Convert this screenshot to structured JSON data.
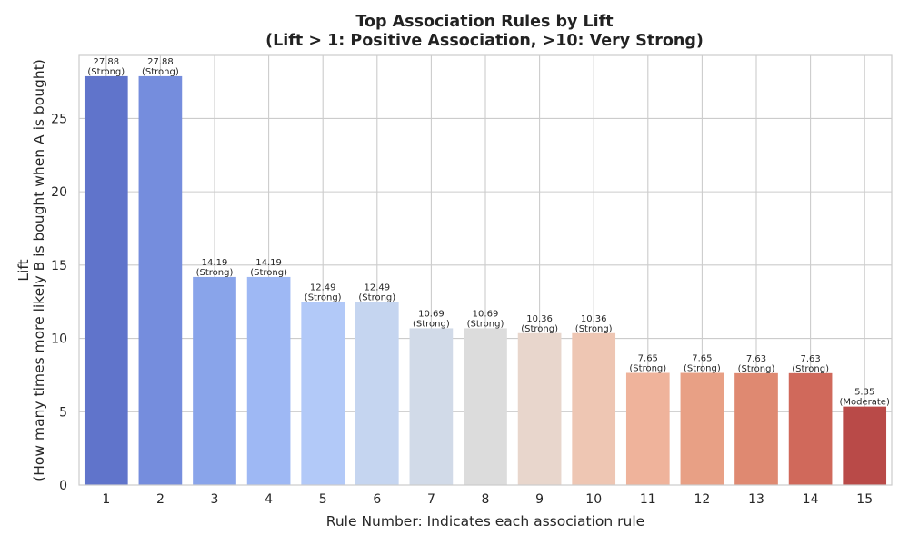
{
  "chart_data": {
    "type": "bar",
    "title": "Top Association Rules by Lift",
    "subtitle": "(Lift > 1: Positive Association, >10: Very Strong)",
    "xlabel": "Rule Number: Indicates each association rule",
    "ylabel": "Lift",
    "ylabel_line2": "(How many times more likely B is bought when A is bought)",
    "categories": [
      "1",
      "2",
      "3",
      "4",
      "5",
      "6",
      "7",
      "8",
      "9",
      "10",
      "11",
      "12",
      "13",
      "14",
      "15"
    ],
    "values": [
      27.88,
      27.88,
      14.19,
      14.19,
      12.49,
      12.49,
      10.69,
      10.69,
      10.36,
      10.36,
      7.65,
      7.65,
      7.63,
      7.63,
      5.35
    ],
    "value_labels": [
      "27.88",
      "27.88",
      "14.19",
      "14.19",
      "12.49",
      "12.49",
      "10.69",
      "10.69",
      "10.36",
      "10.36",
      "7.65",
      "7.65",
      "7.63",
      "7.63",
      "5.35"
    ],
    "strength_labels": [
      "(Strong)",
      "(Strong)",
      "(Strong)",
      "(Strong)",
      "(Strong)",
      "(Strong)",
      "(Strong)",
      "(Strong)",
      "(Strong)",
      "(Strong)",
      "(Strong)",
      "(Strong)",
      "(Strong)",
      "(Strong)",
      "(Moderate)"
    ],
    "colors": [
      "#6074cb",
      "#758ddd",
      "#89a4ea",
      "#9eb8f4",
      "#b2c9f8",
      "#c5d5f0",
      "#d1dae8",
      "#dcdcdc",
      "#e8d6cc",
      "#eec6b3",
      "#efb39b",
      "#e8a085",
      "#df8971",
      "#d0695b",
      "#b94a48"
    ],
    "ylim": [
      0,
      29.3
    ],
    "yticks": [
      0,
      5,
      10,
      15,
      20,
      25
    ],
    "ytick_labels": [
      "0",
      "5",
      "10",
      "15",
      "20",
      "25"
    ],
    "grid": true
  }
}
